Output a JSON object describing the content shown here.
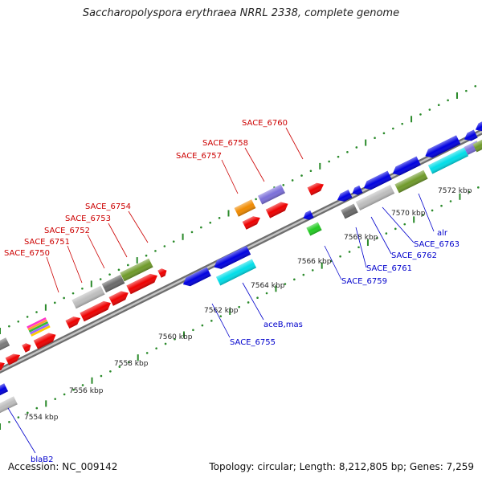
{
  "title": "Saccharopolyspora erythraea NRRL 2338, complete genome",
  "footer": {
    "accession": "Accession: NC_009142",
    "summary": "Topology: circular; Length: 8,212,805 bp; Genes: 7,259"
  },
  "colors": {
    "backbone": "#8a8a8a",
    "tick": "#2a8a2a",
    "forward_label": "#cc0000",
    "reverse_label": "#0000cc",
    "scale_text": "#222222"
  },
  "scale_labels": [
    "7554 kbp",
    "7556 kbp",
    "7558 kbp",
    "7560 kbp",
    "7562 kbp",
    "7564 kbp",
    "7566 kbp",
    "7568 kbp",
    "7570 kbp",
    "7572 kbp"
  ],
  "forward_labels": [
    "SACE_6750",
    "SACE_6751",
    "SACE_6752",
    "SACE_6753",
    "SACE_6754",
    "SACE_6757",
    "SACE_6758",
    "SACE_6760"
  ],
  "reverse_labels": [
    "blaB2",
    "SACE_6755",
    "aceB,mas",
    "SACE_6759",
    "SACE_6761",
    "SACE_6762",
    "SACE_6763",
    "alr"
  ]
}
